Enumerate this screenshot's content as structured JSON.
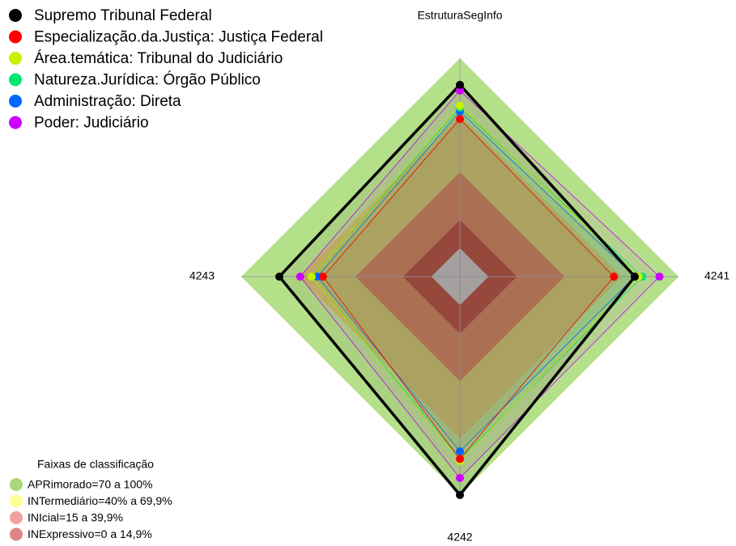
{
  "chart_data": {
    "type": "radar",
    "title": "EstruturaSegInfo",
    "categories": [
      "EstruturaSegInfo",
      "4241",
      "4242",
      "4243"
    ],
    "rlim": [
      -15,
      100
    ],
    "series": [
      {
        "name": "Supremo Tribunal Federal",
        "color": "#000000",
        "values": [
          86,
          77,
          100,
          80
        ]
      },
      {
        "name": "Especialização.da.Justiça: Justiça Federal",
        "color": "#ff0000",
        "values": [
          68,
          66,
          81,
          57
        ]
      },
      {
        "name": "Área.temática: Tribunal do Judiciário",
        "color": "#c8f000",
        "values": [
          75,
          79,
          82,
          63
        ]
      },
      {
        "name": "Natureza.Jurídica: Órgão Público",
        "color": "#00e676",
        "values": [
          74,
          81,
          81,
          63
        ]
      },
      {
        "name": "Administração: Direta",
        "color": "#0066ff",
        "values": [
          72,
          77,
          77,
          60
        ]
      },
      {
        "name": "Poder: Judiciário",
        "color": "#cc00ff",
        "values": [
          83,
          90,
          91,
          69
        ]
      }
    ],
    "bands_title": "Faixas de classificação",
    "bands": [
      {
        "label": "APRimorado=70 a 100%",
        "from": 70,
        "to": 100,
        "color": "#b5e08a",
        "legend_color": "#a8d878"
      },
      {
        "label": "INTermediário=40% a 69,9%",
        "from": 40,
        "to": 70,
        "color": "#c9c263",
        "legend_color": "#ffff99"
      },
      {
        "label": "INIcial=15 a 39,9%",
        "from": 15,
        "to": 40,
        "color": "#c97a52",
        "legend_color": "#f4a0a0"
      },
      {
        "label": "INExpressivo=0 a 14,9%",
        "from": 0,
        "to": 15,
        "color": "#a8412f",
        "legend_color": "#e08585"
      }
    ]
  }
}
